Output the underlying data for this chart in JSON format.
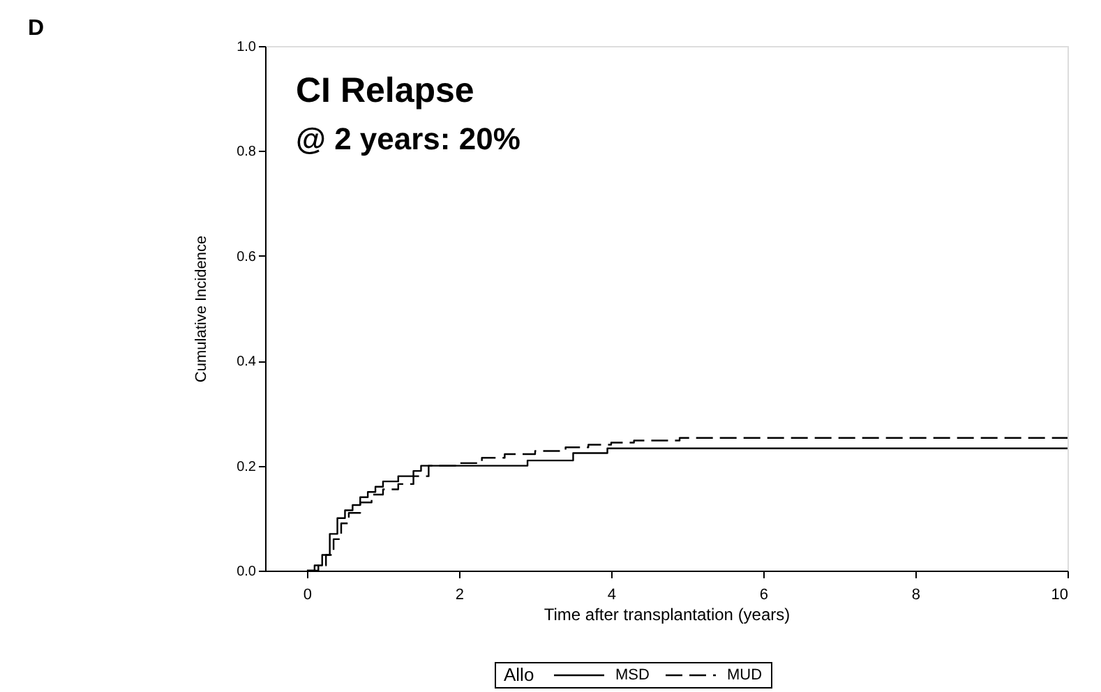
{
  "chart_data": {
    "type": "step",
    "title": "CI Relapse",
    "subtitle": "@ 2 years: 20%",
    "annotations": [
      "D"
    ],
    "xlabel": "Time after transplantation (years)",
    "ylabel": "Cumulative Incidence",
    "legend_title": "Allo",
    "xlim": [
      -0.55,
      10
    ],
    "xticks": [
      0,
      2,
      4,
      6,
      8,
      10
    ],
    "ylim": [
      0,
      1.0
    ],
    "yticks": [
      {
        "value": 0,
        "label": "0.0"
      },
      {
        "value": 0.2,
        "label": "0.2"
      },
      {
        "value": 0.4,
        "label": "0.4"
      },
      {
        "value": 0.6,
        "label": "0.6"
      },
      {
        "value": 0.8,
        "label": "0.8"
      },
      {
        "value": 1.0,
        "label": "1.0"
      }
    ],
    "grid": false,
    "legend": "bottom",
    "series": [
      {
        "name": "MSD",
        "color": "#000000",
        "line_style": "solid",
        "x": [
          0,
          0.1,
          0.2,
          0.3,
          0.4,
          0.5,
          0.6,
          0.7,
          0.8,
          0.9,
          1.0,
          1.2,
          1.4,
          1.5,
          2.9,
          3.5,
          3.95,
          10
        ],
        "values": [
          0,
          0.01,
          0.03,
          0.07,
          0.1,
          0.115,
          0.125,
          0.14,
          0.15,
          0.16,
          0.17,
          0.18,
          0.19,
          0.2,
          0.21,
          0.224,
          0.233,
          0.233
        ]
      },
      {
        "name": "MUD",
        "color": "#000000",
        "line_style": "dashed",
        "x": [
          0,
          0.15,
          0.25,
          0.35,
          0.45,
          0.55,
          0.7,
          0.85,
          1.0,
          1.2,
          1.4,
          1.6,
          2.0,
          2.3,
          2.6,
          3.0,
          3.4,
          3.7,
          4.0,
          4.3,
          4.9,
          10
        ],
        "values": [
          0,
          0.01,
          0.03,
          0.06,
          0.09,
          0.11,
          0.13,
          0.145,
          0.155,
          0.165,
          0.18,
          0.2,
          0.205,
          0.215,
          0.222,
          0.228,
          0.235,
          0.24,
          0.244,
          0.248,
          0.253,
          0.253
        ]
      }
    ]
  }
}
